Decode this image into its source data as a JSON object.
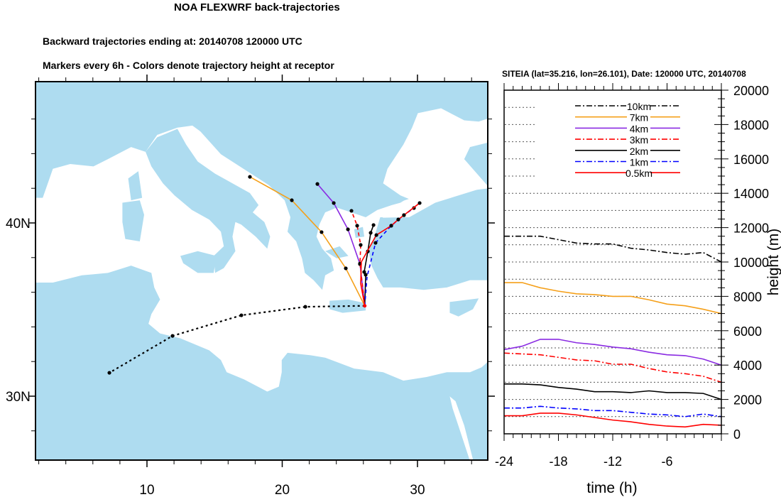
{
  "header": {
    "title": "NOA FLEXWRF back-trajectories",
    "subtitle1": "Backward trajectories ending at: 20140708  120000 UTC",
    "subtitle2": "Markers every 6h - Colors denote trajectory height at receptor"
  },
  "map": {
    "lat_labels": [
      {
        "lat": 40,
        "text": "40N"
      },
      {
        "lat": 30,
        "text": "30N"
      }
    ],
    "lon_labels": [
      {
        "lon": 10,
        "text": "10"
      },
      {
        "lon": 20,
        "text": "20"
      },
      {
        "lon": 30,
        "text": "30"
      }
    ],
    "land_color": "#aedcf0",
    "sea_color": "#ffffff",
    "receptor": {
      "lon": 26.101,
      "lat": 35.216
    },
    "trajectories": [
      {
        "name": "10km",
        "color": "#000000",
        "dash": "dotted",
        "points": [
          [
            21.71,
            35.16,
            1
          ],
          [
            16.98,
            34.67,
            1
          ],
          [
            11.89,
            33.48,
            1
          ],
          [
            7.22,
            31.35,
            1
          ]
        ]
      },
      {
        "name": "7km",
        "color": "#f5a01a",
        "dash": "solid",
        "points": [
          [
            24.7,
            37.38,
            1
          ],
          [
            22.91,
            39.47,
            1
          ],
          [
            20.71,
            41.31,
            1
          ],
          [
            17.61,
            42.66,
            1
          ]
        ]
      },
      {
        "name": "4km",
        "color": "#8a2be2",
        "dash": "solid",
        "points": [
          [
            25.75,
            37.62,
            1
          ],
          [
            24.86,
            39.63,
            1
          ],
          [
            23.81,
            41.15,
            1
          ],
          [
            22.6,
            42.25,
            1
          ]
        ]
      },
      {
        "name": "3km",
        "color": "#ff0000",
        "dash": "dashed",
        "points": [
          [
            25.75,
            37.66,
            1
          ],
          [
            25.8,
            38.73,
            1
          ],
          [
            25.54,
            39.84,
            1
          ],
          [
            25.12,
            40.7,
            1
          ]
        ]
      },
      {
        "name": "2km",
        "color": "#000000",
        "dash": "solid",
        "points": [
          [
            26.17,
            37.01,
            1
          ],
          [
            26.06,
            37.17,
            1
          ],
          [
            26.33,
            38.36,
            1
          ],
          [
            26.54,
            39.43,
            1
          ],
          [
            26.75,
            39.88,
            1
          ]
        ]
      },
      {
        "name": "1km",
        "color": "#0000ff",
        "dash": "dashed",
        "points": [
          [
            26.27,
            36.89,
            0
          ],
          [
            26.9,
            38.85,
            1
          ],
          [
            28.06,
            39.84,
            1
          ],
          [
            29.0,
            40.45,
            1
          ],
          [
            29.74,
            40.86,
            1
          ]
        ]
      },
      {
        "name": "0.5km",
        "color": "#ff0000",
        "dash": "solid",
        "points": [
          [
            25.8,
            36.5,
            0
          ],
          [
            25.85,
            37.75,
            0
          ],
          [
            26.35,
            38.45,
            0
          ],
          [
            26.96,
            39.3,
            1
          ],
          [
            28.06,
            39.84,
            1
          ],
          [
            28.58,
            40.2,
            1
          ],
          [
            29.0,
            40.45,
            1
          ],
          [
            30.16,
            41.15,
            1
          ]
        ]
      }
    ]
  },
  "chart_data": {
    "type": "line",
    "title": "SITEIA (lat=35.216,  lon=26.101), Date: 120000 UTC, 20140708",
    "xlabel": "time (h)",
    "ylabel": "height (m)",
    "xlim": [
      -24,
      0
    ],
    "ylim": [
      0,
      20000
    ],
    "xticks": [
      -24,
      -18,
      -12,
      -6
    ],
    "yticks": [
      0,
      2000,
      4000,
      6000,
      8000,
      10000,
      12000,
      14000,
      16000,
      18000,
      20000
    ],
    "grid": "horizontal dotted every 1000",
    "legend_position": "top-center",
    "x": [
      -24,
      -22,
      -20,
      -18,
      -16,
      -14,
      -12,
      -10,
      -8,
      -6,
      -4,
      -2,
      0
    ],
    "series": [
      {
        "name": "10km",
        "color": "#000000",
        "dash": "dashdot",
        "values": [
          11500,
          11500,
          11500,
          11300,
          11100,
          11050,
          11050,
          10800,
          10700,
          10550,
          10450,
          10550,
          10000
        ]
      },
      {
        "name": "7km",
        "color": "#f5a01a",
        "dash": "solid",
        "values": [
          8800,
          8800,
          8500,
          8300,
          8150,
          8100,
          8000,
          8000,
          7800,
          7550,
          7450,
          7250,
          7000
        ]
      },
      {
        "name": "4km",
        "color": "#8a2be2",
        "dash": "solid",
        "values": [
          4900,
          5100,
          5500,
          5500,
          5300,
          5200,
          5050,
          4950,
          4750,
          4600,
          4550,
          4350,
          4000
        ]
      },
      {
        "name": "3km",
        "color": "#ff0000",
        "dash": "dashdot",
        "values": [
          4700,
          4650,
          4600,
          4450,
          4300,
          4250,
          4050,
          4050,
          3800,
          3600,
          3500,
          3350,
          3000
        ]
      },
      {
        "name": "2km",
        "color": "#000000",
        "dash": "solid",
        "values": [
          2900,
          2900,
          2850,
          2700,
          2600,
          2450,
          2450,
          2400,
          2500,
          2400,
          2400,
          2350,
          2000
        ]
      },
      {
        "name": "1km",
        "color": "#0000ff",
        "dash": "dashdot",
        "values": [
          1500,
          1500,
          1600,
          1500,
          1450,
          1350,
          1350,
          1250,
          1150,
          1100,
          1000,
          1150,
          1000
        ]
      },
      {
        "name": "0.5km",
        "color": "#ff0000",
        "dash": "solid",
        "values": [
          1050,
          1050,
          1200,
          1200,
          1100,
          950,
          800,
          700,
          550,
          450,
          400,
          550,
          500
        ]
      }
    ]
  }
}
